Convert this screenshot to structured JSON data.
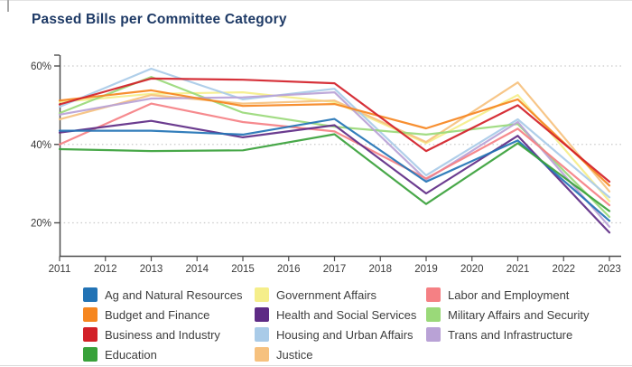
{
  "title": "Passed Bills per Committee Category",
  "chart_data": {
    "type": "line",
    "title": "Passed Bills per Committee Category",
    "xlabel": "",
    "ylabel": "",
    "x": [
      2011,
      2013,
      2015,
      2017,
      2019,
      2021,
      2023
    ],
    "x_axis_labels": [
      "2011",
      "2012",
      "2013",
      "2014",
      "2015",
      "2016",
      "2017",
      "2018",
      "2019",
      "2020",
      "2021",
      "2022",
      "2023"
    ],
    "y_ticks": [
      60,
      40,
      20
    ],
    "y_tick_suffix": "%",
    "ylim": [
      12,
      63
    ],
    "grid": "horizontal-dotted",
    "legend_position": "bottom",
    "axis_color": "#4d4d4d",
    "grid_color": "#c9c9c9",
    "tick_label_color": "#3a3a3a",
    "series": [
      {
        "name": "Ag and Natural Resources",
        "color": "#2273b5",
        "values": [
          43.5,
          43.5,
          42.5,
          46.5,
          30.5,
          41.0,
          20.5
        ]
      },
      {
        "name": "Budget and Finance",
        "color": "#f6861f",
        "values": [
          51.2,
          53.8,
          49.8,
          50.3,
          44.1,
          51.5,
          29.5
        ]
      },
      {
        "name": "Business and Industry",
        "color": "#d22028",
        "values": [
          50.2,
          56.8,
          56.5,
          55.6,
          38.3,
          50.0,
          30.5
        ]
      },
      {
        "name": "Education",
        "color": "#38a13a",
        "values": [
          38.8,
          38.3,
          38.5,
          42.6,
          24.8,
          40.3,
          23.0
        ]
      },
      {
        "name": "Government Affairs",
        "color": "#f5ee8a",
        "values": [
          50.8,
          52.9,
          53.3,
          50.8,
          40.3,
          52.6,
          25.5
        ]
      },
      {
        "name": "Health and Social Services",
        "color": "#5e2b85",
        "values": [
          43.0,
          46.0,
          41.8,
          44.9,
          27.5,
          42.2,
          17.5
        ]
      },
      {
        "name": "Housing and Urban Affairs",
        "color": "#a9cbe8",
        "values": [
          49.6,
          59.3,
          51.5,
          54.2,
          32.1,
          46.4,
          26.5
        ]
      },
      {
        "name": "Justice",
        "color": "#f6c17e",
        "values": [
          46.4,
          52.6,
          50.4,
          51.2,
          40.6,
          55.8,
          28.0
        ]
      },
      {
        "name": "Labor and Employment",
        "color": "#f58084",
        "values": [
          40.0,
          50.4,
          45.7,
          43.3,
          31.3,
          44.0,
          24.5
        ]
      },
      {
        "name": "Military Affairs and Security",
        "color": "#9ad979",
        "values": [
          48.0,
          57.2,
          48.1,
          44.5,
          42.5,
          45.2,
          21.5
        ]
      },
      {
        "name": "Trans and Infrastructure",
        "color": "#b9a2d6",
        "values": [
          47.6,
          51.7,
          52.0,
          53.3,
          31.0,
          45.7,
          19.0
        ]
      }
    ],
    "draw_order": [
      "Government Affairs",
      "Justice",
      "Housing and Urban Affairs",
      "Military Affairs and Security",
      "Trans and Infrastructure",
      "Labor and Employment",
      "Budget and Finance",
      "Health and Social Services",
      "Ag and Natural Resources",
      "Education",
      "Business and Industry"
    ]
  },
  "legend": {
    "columns": [
      [
        "Ag and Natural Resources",
        "Budget and Finance",
        "Business and Industry",
        "Education"
      ],
      [
        "Government Affairs",
        "Health and Social Services",
        "Housing and Urban Affairs",
        "Justice"
      ],
      [
        "Labor and Employment",
        "Military Affairs and Security",
        "Trans and Infrastructure"
      ]
    ]
  }
}
